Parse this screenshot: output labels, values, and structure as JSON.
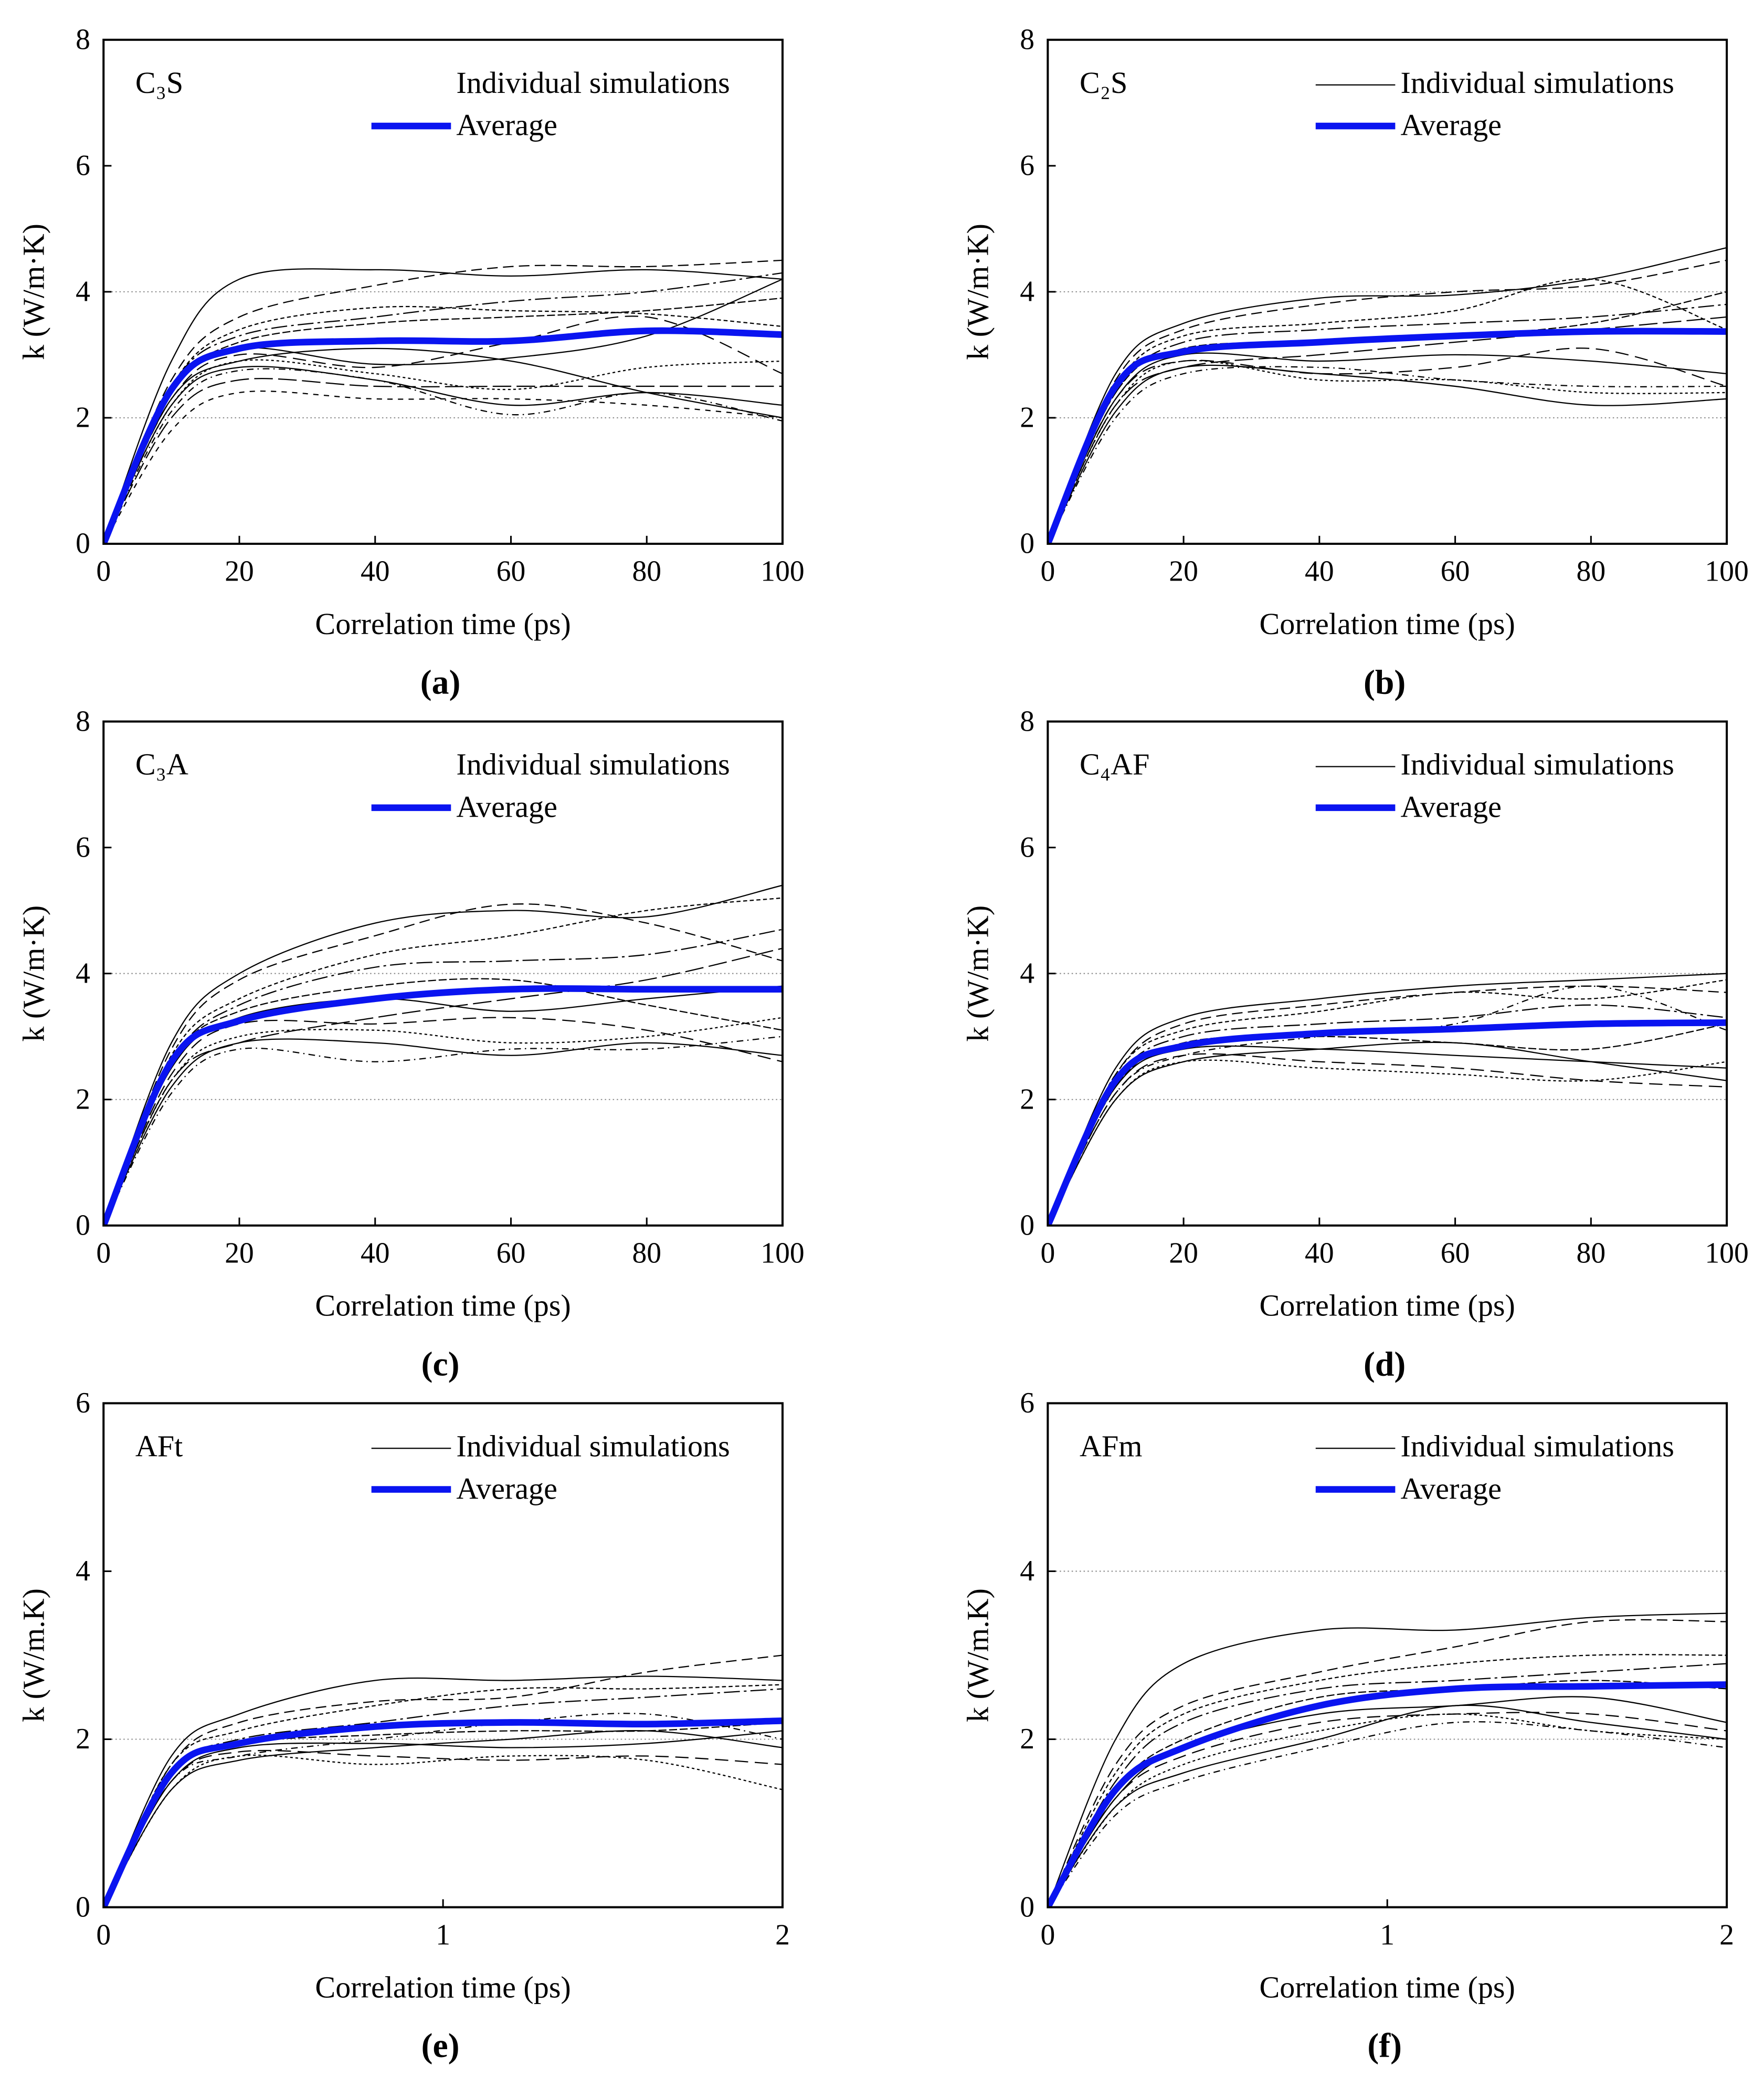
{
  "legend": {
    "individual": "Individual simulations",
    "average": "Average"
  },
  "colors": {
    "average": "#0a14f0",
    "individual": "#000000",
    "grid": "#888888"
  },
  "chart_data": [
    {
      "type": "line",
      "panel": "(a)",
      "title": "C₃S",
      "xlabel": "Correlation time (ps)",
      "ylabel": "k (W/m·K)",
      "xlim": [
        0,
        100
      ],
      "ylim": [
        0,
        8
      ],
      "xticks": [
        "0",
        "20",
        "40",
        "60",
        "80",
        "100"
      ],
      "yticks": [
        "0",
        "2",
        "4",
        "6",
        "8"
      ],
      "grid_y": [
        2,
        4
      ],
      "individual_legend_sample": false,
      "x": [
        0,
        10,
        20,
        40,
        60,
        80,
        100
      ],
      "average": [
        0,
        2.45,
        3.1,
        3.22,
        3.22,
        3.38,
        3.32
      ],
      "individual": [
        [
          0,
          2.9,
          4.2,
          4.35,
          4.25,
          4.35,
          4.2
        ],
        [
          0,
          2.6,
          3.6,
          4.1,
          4.4,
          4.4,
          4.5
        ],
        [
          0,
          2.5,
          3.4,
          3.75,
          3.7,
          3.65,
          3.45
        ],
        [
          0,
          2.5,
          3.3,
          3.6,
          3.85,
          4.0,
          4.3
        ],
        [
          0,
          2.4,
          3.2,
          3.5,
          3.6,
          3.7,
          3.9
        ],
        [
          0,
          2.4,
          3.1,
          2.85,
          2.95,
          3.3,
          4.2
        ],
        [
          0,
          2.3,
          3.0,
          2.8,
          3.2,
          3.6,
          2.7
        ],
        [
          0,
          2.2,
          2.9,
          2.7,
          2.45,
          2.8,
          2.9
        ],
        [
          0,
          2.2,
          2.8,
          2.6,
          2.2,
          2.4,
          2.2
        ],
        [
          0,
          2.1,
          2.75,
          2.6,
          2.05,
          2.4,
          1.95
        ],
        [
          0,
          2.0,
          2.6,
          2.5,
          2.5,
          2.5,
          2.5
        ],
        [
          0,
          1.8,
          2.4,
          2.3,
          2.3,
          2.2,
          2.0
        ],
        [
          0,
          2.3,
          2.9,
          3.1,
          2.9,
          2.4,
          2.0
        ]
      ]
    },
    {
      "type": "line",
      "panel": "(b)",
      "title": "C₂S",
      "xlabel": "Correlation time (ps)",
      "ylabel": "k (W/m·K)",
      "xlim": [
        0,
        100
      ],
      "ylim": [
        0,
        8
      ],
      "xticks": [
        "0",
        "20",
        "40",
        "60",
        "80",
        "100"
      ],
      "yticks": [
        "0",
        "2",
        "4",
        "6",
        "8"
      ],
      "grid_y": [
        2,
        4
      ],
      "individual_legend_sample": true,
      "x": [
        0,
        10,
        20,
        40,
        60,
        80,
        100
      ],
      "average": [
        0,
        2.5,
        3.05,
        3.2,
        3.3,
        3.37,
        3.37
      ],
      "individual": [
        [
          0,
          2.7,
          3.5,
          3.9,
          3.95,
          4.2,
          4.7
        ],
        [
          0,
          2.6,
          3.4,
          3.8,
          4.0,
          4.1,
          4.5
        ],
        [
          0,
          2.5,
          3.3,
          3.5,
          3.7,
          4.2,
          3.4
        ],
        [
          0,
          2.4,
          3.2,
          3.4,
          3.5,
          3.6,
          3.8
        ],
        [
          0,
          2.4,
          3.1,
          3.2,
          3.3,
          3.5,
          4.0
        ],
        [
          0,
          2.3,
          3.0,
          2.9,
          3.0,
          2.9,
          2.7
        ],
        [
          0,
          2.3,
          2.9,
          2.7,
          2.8,
          3.1,
          2.5
        ],
        [
          0,
          2.2,
          2.9,
          2.6,
          2.6,
          2.4,
          2.4
        ],
        [
          0,
          2.1,
          2.8,
          2.7,
          2.5,
          2.2,
          2.3
        ],
        [
          0,
          2.0,
          2.7,
          2.8,
          2.6,
          2.5,
          2.5
        ],
        [
          0,
          2.2,
          2.8,
          3.0,
          3.2,
          3.4,
          3.6
        ]
      ]
    },
    {
      "type": "line",
      "panel": "(c)",
      "title": "C₃A",
      "xlabel": "Correlation time (ps)",
      "ylabel": "k (W/m·K)",
      "xlim": [
        0,
        100
      ],
      "ylim": [
        0,
        8
      ],
      "xticks": [
        "0",
        "20",
        "40",
        "60",
        "80",
        "100"
      ],
      "yticks": [
        "0",
        "2",
        "4",
        "6",
        "8"
      ],
      "grid_y": [
        2,
        4
      ],
      "individual_legend_sample": false,
      "x": [
        0,
        10,
        20,
        40,
        60,
        80,
        100
      ],
      "average": [
        0,
        2.6,
        3.25,
        3.6,
        3.75,
        3.75,
        3.75
      ],
      "individual": [
        [
          0,
          2.9,
          4.0,
          4.8,
          5.0,
          4.9,
          5.4
        ],
        [
          0,
          2.8,
          3.9,
          4.6,
          5.1,
          4.8,
          4.2
        ],
        [
          0,
          2.7,
          3.6,
          4.3,
          4.6,
          5.0,
          5.2
        ],
        [
          0,
          2.6,
          3.5,
          4.1,
          4.2,
          4.3,
          4.7
        ],
        [
          0,
          2.6,
          3.4,
          3.8,
          3.9,
          3.5,
          3.1
        ],
        [
          0,
          2.5,
          3.3,
          3.6,
          3.4,
          3.6,
          3.8
        ],
        [
          0,
          2.4,
          3.2,
          3.2,
          3.3,
          3.1,
          2.6
        ],
        [
          0,
          2.3,
          3.0,
          3.1,
          2.9,
          3.0,
          3.3
        ],
        [
          0,
          2.2,
          2.9,
          2.9,
          2.7,
          2.9,
          2.7
        ],
        [
          0,
          2.1,
          2.8,
          2.6,
          2.8,
          2.8,
          3.0
        ],
        [
          0,
          2.3,
          2.9,
          3.3,
          3.6,
          3.9,
          4.4
        ]
      ]
    },
    {
      "type": "line",
      "panel": "(d)",
      "title": "C₄AF",
      "xlabel": "Correlation time (ps)",
      "ylabel": "k (W/m·K)",
      "xlim": [
        0,
        100
      ],
      "ylim": [
        0,
        8
      ],
      "xticks": [
        "0",
        "20",
        "40",
        "60",
        "80",
        "100"
      ],
      "yticks": [
        "0",
        "2",
        "4",
        "6",
        "8"
      ],
      "grid_y": [
        2,
        4
      ],
      "individual_legend_sample": true,
      "x": [
        0,
        10,
        20,
        40,
        60,
        80,
        100
      ],
      "average": [
        0,
        2.3,
        2.85,
        3.05,
        3.12,
        3.2,
        3.22
      ],
      "individual": [
        [
          0,
          2.5,
          3.3,
          3.6,
          3.8,
          3.9,
          4.0
        ],
        [
          0,
          2.4,
          3.2,
          3.5,
          3.7,
          3.8,
          3.7
        ],
        [
          0,
          2.4,
          3.1,
          3.4,
          3.7,
          3.6,
          3.9
        ],
        [
          0,
          2.3,
          3.0,
          3.2,
          3.3,
          3.5,
          3.3
        ],
        [
          0,
          2.2,
          2.9,
          3.0,
          2.9,
          2.8,
          3.2
        ],
        [
          0,
          2.2,
          2.8,
          2.8,
          2.7,
          2.6,
          2.5
        ],
        [
          0,
          2.1,
          2.7,
          2.6,
          2.5,
          2.3,
          2.2
        ],
        [
          0,
          2.0,
          2.6,
          2.5,
          2.4,
          2.3,
          2.6
        ],
        [
          0,
          2.0,
          2.6,
          2.8,
          2.9,
          2.6,
          2.3
        ],
        [
          0,
          2.1,
          2.7,
          3.0,
          3.2,
          3.8,
          3.1
        ]
      ]
    },
    {
      "type": "line",
      "panel": "(e)",
      "title": "AFt",
      "xlabel": "Correlation time (ps)",
      "ylabel": "k (W/m.K)",
      "xlim": [
        0,
        2
      ],
      "ylim": [
        0,
        6
      ],
      "xticks": [
        "0",
        "1",
        "2"
      ],
      "yticks": [
        "0",
        "2",
        "4",
        "6"
      ],
      "grid_y": [
        2
      ],
      "individual_legend_sample": true,
      "x": [
        0,
        0.2,
        0.4,
        0.8,
        1.2,
        1.6,
        2
      ],
      "average": [
        0,
        1.6,
        1.95,
        2.15,
        2.2,
        2.18,
        2.22
      ],
      "individual": [
        [
          0,
          1.8,
          2.3,
          2.7,
          2.7,
          2.75,
          2.7
        ],
        [
          0,
          1.7,
          2.2,
          2.45,
          2.5,
          2.8,
          3.0
        ],
        [
          0,
          1.7,
          2.1,
          2.4,
          2.6,
          2.6,
          2.65
        ],
        [
          0,
          1.6,
          2.0,
          2.2,
          2.4,
          2.5,
          2.6
        ],
        [
          0,
          1.6,
          1.95,
          2.05,
          2.1,
          2.1,
          2.2
        ],
        [
          0,
          1.5,
          1.9,
          1.95,
          1.9,
          1.95,
          2.1
        ],
        [
          0,
          1.5,
          1.85,
          1.8,
          1.75,
          1.8,
          1.7
        ],
        [
          0,
          1.4,
          1.8,
          1.7,
          1.8,
          1.75,
          1.4
        ],
        [
          0,
          1.4,
          1.75,
          1.9,
          2.0,
          2.1,
          1.9
        ],
        [
          0,
          1.5,
          1.8,
          2.0,
          2.2,
          2.3,
          2.0
        ]
      ]
    },
    {
      "type": "line",
      "panel": "(f)",
      "title": "AFm",
      "xlabel": "Correlation time (ps)",
      "ylabel": "k (W/m.K)",
      "xlim": [
        0,
        2
      ],
      "ylim": [
        0,
        6
      ],
      "xticks": [
        "0",
        "1",
        "2"
      ],
      "yticks": [
        "0",
        "2",
        "4",
        "6"
      ],
      "grid_y": [
        2,
        4
      ],
      "individual_legend_sample": true,
      "x": [
        0,
        0.2,
        0.4,
        0.8,
        1.2,
        1.6,
        2
      ],
      "average": [
        0,
        1.4,
        1.9,
        2.4,
        2.6,
        2.63,
        2.65
      ],
      "individual": [
        [
          0,
          2.0,
          2.9,
          3.3,
          3.3,
          3.45,
          3.5
        ],
        [
          0,
          1.7,
          2.4,
          2.8,
          3.1,
          3.4,
          3.4
        ],
        [
          0,
          1.6,
          2.3,
          2.7,
          2.9,
          3.0,
          3.0
        ],
        [
          0,
          1.5,
          2.2,
          2.6,
          2.7,
          2.8,
          2.9
        ],
        [
          0,
          1.4,
          2.0,
          2.5,
          2.6,
          2.7,
          2.6
        ],
        [
          0,
          1.3,
          1.9,
          2.3,
          2.4,
          2.5,
          2.2
        ],
        [
          0,
          1.3,
          1.8,
          2.2,
          2.3,
          2.3,
          2.1
        ],
        [
          0,
          1.2,
          1.7,
          2.1,
          2.3,
          2.1,
          2.0
        ],
        [
          0,
          1.2,
          1.6,
          2.0,
          2.4,
          2.2,
          2.0
        ],
        [
          0,
          1.1,
          1.5,
          1.9,
          2.2,
          2.1,
          1.9
        ]
      ]
    }
  ]
}
